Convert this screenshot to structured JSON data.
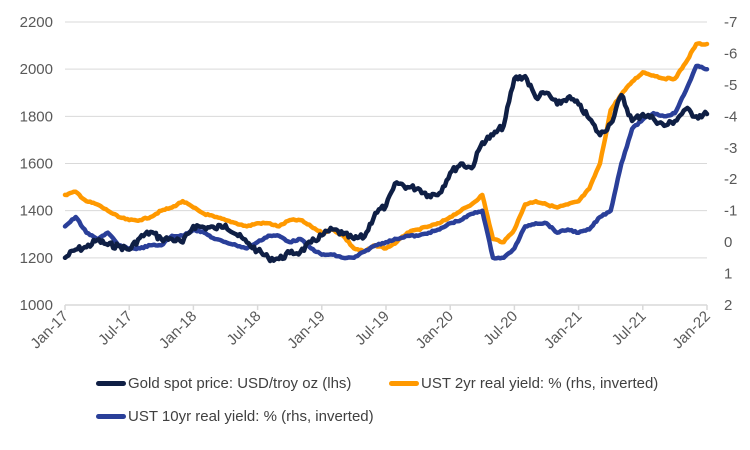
{
  "chart_data": {
    "type": "line",
    "title": "",
    "xlabel": "",
    "ylabel_left": "",
    "ylabel_right": "",
    "x_ticks": [
      "Jan-17",
      "Jul-17",
      "Jan-18",
      "Jul-18",
      "Jan-19",
      "Jul-19",
      "Jan-20",
      "Jul-20",
      "Jan-21",
      "Jul-21",
      "Jan-22"
    ],
    "x_range": [
      "2017-01",
      "2022-01"
    ],
    "y_left": {
      "ticks": [
        1000,
        1200,
        1400,
        1600,
        1800,
        2000,
        2200
      ],
      "range": [
        1000,
        2200
      ]
    },
    "y_right": {
      "ticks": [
        -7,
        -6,
        -5,
        -4,
        -3,
        -2,
        -1,
        0,
        1,
        2
      ],
      "range": [
        -7,
        2
      ],
      "inverted": true
    },
    "grid": true,
    "legend_position": "bottom",
    "x": [
      "2017-01",
      "2017-02",
      "2017-03",
      "2017-04",
      "2017-05",
      "2017-06",
      "2017-07",
      "2017-08",
      "2017-09",
      "2017-10",
      "2017-11",
      "2017-12",
      "2018-01",
      "2018-02",
      "2018-03",
      "2018-04",
      "2018-05",
      "2018-06",
      "2018-07",
      "2018-08",
      "2018-09",
      "2018-10",
      "2018-11",
      "2018-12",
      "2019-01",
      "2019-02",
      "2019-03",
      "2019-04",
      "2019-05",
      "2019-06",
      "2019-07",
      "2019-08",
      "2019-09",
      "2019-10",
      "2019-11",
      "2019-12",
      "2020-01",
      "2020-02",
      "2020-03",
      "2020-04",
      "2020-05",
      "2020-06",
      "2020-07",
      "2020-08",
      "2020-09",
      "2020-10",
      "2020-11",
      "2020-12",
      "2021-01",
      "2021-02",
      "2021-03",
      "2021-04",
      "2021-05",
      "2021-06",
      "2021-07",
      "2021-08",
      "2021-09",
      "2021-10",
      "2021-11",
      "2021-12",
      "2022-01"
    ],
    "series": [
      {
        "name": "Gold spot price: USD/troy oz (lhs)",
        "axis": "left",
        "color": "#0f1f45",
        "values": [
          1200,
          1235,
          1245,
          1275,
          1255,
          1250,
          1235,
          1285,
          1310,
          1280,
          1280,
          1265,
          1335,
          1330,
          1325,
          1340,
          1300,
          1265,
          1230,
          1200,
          1195,
          1220,
          1225,
          1265,
          1295,
          1320,
          1300,
          1280,
          1290,
          1390,
          1420,
          1520,
          1500,
          1495,
          1465,
          1475,
          1560,
          1600,
          1580,
          1690,
          1720,
          1760,
          1960,
          1970,
          1880,
          1900,
          1850,
          1880,
          1850,
          1790,
          1720,
          1770,
          1890,
          1780,
          1810,
          1790,
          1760,
          1780,
          1830,
          1800,
          1810
        ]
      },
      {
        "name": "UST 2yr real yield: % (rhs, inverted)",
        "axis": "right",
        "color": "#ff9900",
        "values": [
          -1.5,
          -1.6,
          -1.3,
          -1.2,
          -1.0,
          -0.8,
          -0.7,
          -0.7,
          -0.8,
          -1.0,
          -1.1,
          -1.3,
          -1.1,
          -0.9,
          -0.8,
          -0.7,
          -0.6,
          -0.5,
          -0.6,
          -0.6,
          -0.5,
          -0.7,
          -0.7,
          -0.5,
          -0.3,
          -0.4,
          -0.2,
          0.2,
          0.3,
          0.1,
          0.2,
          0.0,
          -0.3,
          -0.4,
          -0.5,
          -0.6,
          -0.8,
          -1.0,
          -1.2,
          -1.5,
          -0.1,
          0.0,
          -0.4,
          -1.2,
          -1.3,
          -1.2,
          -1.1,
          -1.2,
          -1.3,
          -1.7,
          -2.5,
          -4.2,
          -4.7,
          -5.1,
          -5.4,
          -5.3,
          -5.2,
          -5.2,
          -5.7,
          -6.3,
          -6.3
        ]
      },
      {
        "name": "UST 10yr real yield: % (rhs, inverted)",
        "axis": "right",
        "color": "#2a3f99",
        "values": [
          -0.5,
          -0.8,
          -0.3,
          -0.1,
          -0.3,
          0.1,
          0.2,
          0.2,
          0.1,
          0.1,
          -0.2,
          -0.2,
          -0.4,
          -0.3,
          -0.1,
          0.0,
          0.1,
          0.2,
          0.0,
          -0.2,
          -0.2,
          0.0,
          -0.1,
          0.2,
          0.4,
          0.4,
          0.5,
          0.5,
          0.3,
          0.1,
          0.0,
          -0.1,
          -0.2,
          -0.2,
          -0.3,
          -0.4,
          -0.6,
          -0.7,
          -0.9,
          -1.0,
          0.5,
          0.5,
          0.2,
          -0.5,
          -0.6,
          -0.6,
          -0.3,
          -0.4,
          -0.3,
          -0.4,
          -0.8,
          -1.0,
          -2.5,
          -3.6,
          -3.9,
          -4.1,
          -4.0,
          -4.1,
          -4.8,
          -5.6,
          -5.5
        ]
      }
    ]
  }
}
